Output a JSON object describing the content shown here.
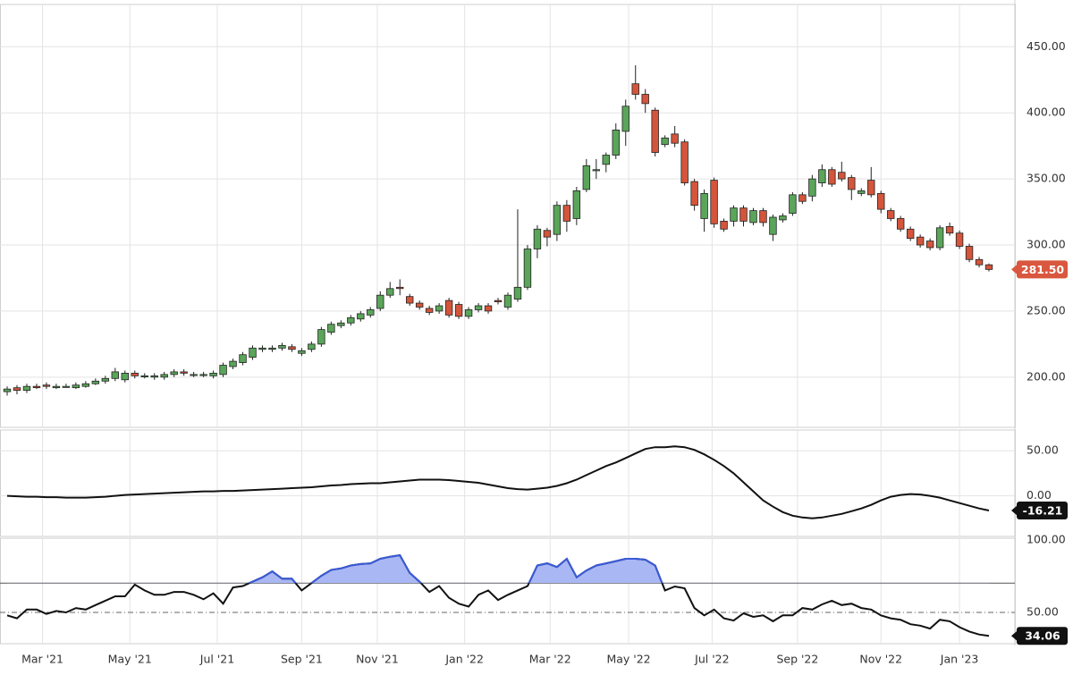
{
  "chart_data": [
    {
      "type": "candlestick",
      "open": [
        189,
        192,
        190,
        193,
        194,
        192,
        193,
        192,
        193,
        195,
        197,
        199,
        198,
        203,
        201,
        200,
        200,
        202,
        204,
        202,
        202,
        201,
        202,
        208,
        211,
        215,
        221,
        221,
        222,
        223,
        218,
        221,
        225,
        234,
        239,
        241,
        244,
        247,
        252,
        262,
        268,
        261,
        256,
        252,
        250,
        258,
        255,
        246,
        251,
        254,
        258,
        253,
        259,
        268,
        297,
        311,
        308,
        330,
        320,
        342,
        357,
        361,
        368,
        386,
        422,
        414,
        402,
        376,
        384,
        378,
        348,
        320,
        349,
        318,
        318,
        328,
        317,
        326,
        308,
        319,
        324,
        338,
        337,
        347,
        357,
        355,
        351,
        339,
        349,
        339,
        326,
        320,
        312,
        306,
        303,
        298,
        314,
        309,
        299,
        289,
        285
      ],
      "high": [
        193,
        194,
        195,
        195,
        196,
        195,
        195,
        196,
        197,
        199,
        201,
        207,
        205,
        205,
        203,
        203,
        204,
        206,
        206,
        204,
        204,
        205,
        211,
        214,
        219,
        224,
        224,
        224,
        226,
        225,
        222,
        227,
        238,
        242,
        243,
        247,
        250,
        253,
        265,
        272,
        274,
        263,
        258,
        254,
        256,
        260,
        257,
        253,
        256,
        256,
        260,
        264,
        327,
        300,
        315,
        313,
        333,
        334,
        344,
        365,
        365,
        370,
        392,
        410,
        436,
        418,
        404,
        383,
        390,
        380,
        350,
        342,
        351,
        320,
        330,
        330,
        328,
        328,
        323,
        324,
        340,
        340,
        353,
        361,
        359,
        363,
        353,
        343,
        359,
        341,
        328,
        322,
        314,
        308,
        305,
        315,
        317,
        311,
        301,
        291,
        286
      ],
      "low": [
        186,
        187,
        188,
        191,
        191,
        191,
        192,
        191,
        192,
        194,
        195,
        197,
        196,
        199,
        199,
        198,
        198,
        200,
        201,
        200,
        200,
        199,
        200,
        206,
        209,
        213,
        219,
        219,
        220,
        219,
        216,
        219,
        223,
        232,
        237,
        239,
        242,
        245,
        250,
        260,
        262,
        254,
        251,
        247,
        248,
        245,
        244,
        244,
        249,
        248,
        255,
        251,
        257,
        266,
        290,
        299,
        303,
        310,
        315,
        340,
        350,
        355,
        365,
        375,
        410,
        400,
        367,
        374,
        374,
        345,
        326,
        310,
        313,
        310,
        314,
        314,
        315,
        314,
        303,
        317,
        322,
        331,
        333,
        344,
        344,
        348,
        334,
        337,
        336,
        324,
        318,
        310,
        303,
        298,
        296,
        296,
        307,
        297,
        287,
        283,
        280
      ],
      "close": [
        191,
        190,
        193,
        192,
        193,
        193,
        193,
        194,
        195,
        197,
        199,
        204,
        203,
        201,
        201,
        201,
        202,
        204,
        203,
        202,
        202,
        203,
        209,
        212,
        217,
        222,
        222,
        222,
        224,
        221,
        220,
        225,
        236,
        240,
        241,
        245,
        248,
        251,
        262,
        267,
        267,
        256,
        253,
        249,
        254,
        247,
        246,
        251,
        254,
        250,
        257,
        262,
        268,
        297,
        312,
        306,
        330,
        318,
        341,
        360,
        357,
        368,
        387,
        405,
        414,
        407,
        370,
        381,
        377,
        347,
        330,
        339,
        316,
        312,
        328,
        318,
        326,
        317,
        321,
        322,
        338,
        333,
        350,
        357,
        346,
        350,
        342,
        341,
        338,
        327,
        320,
        312,
        305,
        300,
        298,
        313,
        309,
        299,
        289,
        285,
        281.5
      ],
      "up_color": "#5aa55a",
      "down_color": "#d4553b",
      "last_color": "#d9573e",
      "last_label": "281.50",
      "ylim": [
        162,
        482
      ],
      "yticks": [
        {
          "value": 200,
          "label": "200.00"
        },
        {
          "value": 250,
          "label": "250.00"
        },
        {
          "value": 300,
          "label": "300.00"
        },
        {
          "value": 350,
          "label": "350.00"
        },
        {
          "value": 400,
          "label": "400.00"
        },
        {
          "value": 450,
          "label": "450.00"
        }
      ],
      "xlim": [
        -0.73,
        102.64
      ],
      "xticks": [
        {
          "value": 3.6,
          "label": "Mar '21"
        },
        {
          "value": 12.5,
          "label": "May '21"
        },
        {
          "value": 21.4,
          "label": "Jul '21"
        },
        {
          "value": 30.0,
          "label": "Sep '21"
        },
        {
          "value": 37.7,
          "label": "Nov '21"
        },
        {
          "value": 46.6,
          "label": "Jan '22"
        },
        {
          "value": 55.3,
          "label": "Mar '22"
        },
        {
          "value": 63.3,
          "label": "May '22"
        },
        {
          "value": 71.8,
          "label": "Jul '22"
        },
        {
          "value": 80.5,
          "label": "Sep '22"
        },
        {
          "value": 89.0,
          "label": "Nov '22"
        },
        {
          "value": 97.0,
          "label": "Jan '23"
        }
      ],
      "grid": true
    },
    {
      "type": "line",
      "values": [
        0,
        -0.5,
        -1,
        -1,
        -1.5,
        -1.5,
        -2,
        -2,
        -2,
        -1.5,
        -1,
        0,
        1,
        1.5,
        2,
        2.5,
        3,
        3.5,
        4,
        4.5,
        5,
        5,
        5.5,
        5.5,
        6,
        6.5,
        7,
        7.5,
        8,
        8.5,
        9,
        9.5,
        10.5,
        11.5,
        12,
        13,
        13.5,
        14,
        14,
        15,
        16,
        17,
        18,
        18,
        18,
        17.5,
        16.5,
        15.5,
        14.5,
        12.5,
        10.5,
        8.5,
        7.5,
        7,
        8,
        9,
        11,
        14,
        18,
        23,
        28,
        33,
        37,
        42,
        47,
        52,
        54,
        54,
        55,
        54,
        51,
        46,
        40,
        33,
        25,
        15,
        5,
        -5,
        -12,
        -18,
        -22,
        -24,
        -25,
        -24,
        -22,
        -20,
        -17,
        -14,
        -10,
        -5,
        -1,
        1,
        2,
        1.5,
        0,
        -2,
        -5,
        -8,
        -11,
        -14,
        -16.21
      ],
      "color": "#111111",
      "last_label": "-16.21",
      "ylim": [
        -45,
        73
      ],
      "yticks": [
        {
          "value": 0,
          "label": "0.00"
        },
        {
          "value": 50,
          "label": "50.00"
        }
      ]
    },
    {
      "type": "band-line",
      "values": [
        48,
        46,
        52,
        52,
        49,
        51,
        50,
        53,
        52,
        55,
        58,
        61,
        61,
        69,
        65,
        62,
        62,
        64,
        64,
        62,
        59,
        63,
        56,
        67,
        68,
        71,
        74,
        78,
        73,
        73,
        65,
        70,
        75,
        79,
        80,
        82,
        83,
        83.5,
        86.6,
        88,
        89,
        77,
        71,
        64,
        68,
        60,
        56,
        54,
        62,
        65,
        58.5,
        62,
        65,
        68,
        82,
        83.5,
        81,
        86.6,
        74,
        78.6,
        82,
        83.5,
        85,
        86.6,
        86.6,
        86,
        82,
        65,
        67.7,
        66.5,
        53,
        48,
        52,
        46,
        44.5,
        49.4,
        47,
        48,
        44,
        48,
        48,
        53,
        52,
        55.5,
        58,
        55,
        56,
        53,
        52,
        48,
        46,
        45,
        42,
        41,
        39,
        45,
        44,
        40,
        37,
        35,
        34.06
      ],
      "color": "#111111",
      "band_color": "#3a5bd9",
      "fill": "#a9b7f4",
      "upper": 70,
      "mid": 50,
      "last_label": "34.06",
      "ylim": [
        28.7,
        100.6
      ],
      "yticks": [
        {
          "value": 50,
          "label": "50.00"
        },
        {
          "value": 100,
          "label": "100.00"
        }
      ]
    }
  ]
}
